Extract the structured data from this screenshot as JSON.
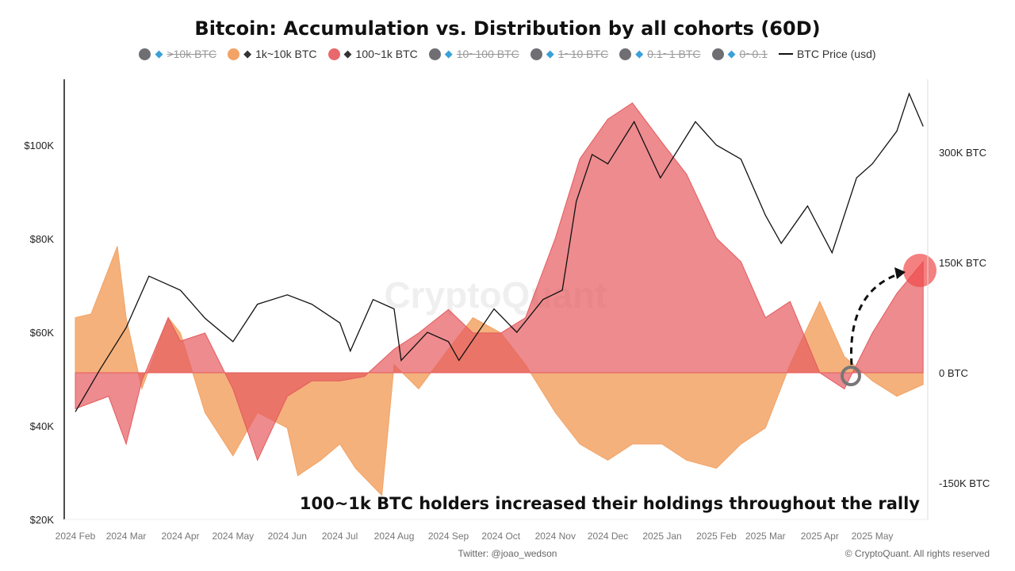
{
  "chart_data": {
    "type": "area",
    "title": "Bitcoin: Accumulation vs. Distribution by all cohorts (60D)",
    "legend": [
      {
        "name": ">10k BTC",
        "color": "#6e6e73",
        "hidden": true,
        "icon": "whale-icon"
      },
      {
        "name": "1k~10k BTC",
        "color": "#f2a365",
        "hidden": false,
        "icon": "shark-icon"
      },
      {
        "name": "100~1k BTC",
        "color": "#e8686c",
        "hidden": false,
        "icon": "dolphin-icon"
      },
      {
        "name": "10~100 BTC",
        "color": "#6e6e73",
        "hidden": true,
        "icon": "fish-icon"
      },
      {
        "name": "1~10 BTC",
        "color": "#6e6e73",
        "hidden": true,
        "icon": "octopus-icon"
      },
      {
        "name": "0.1~1 BTC",
        "color": "#6e6e73",
        "hidden": true,
        "icon": "crab-icon"
      },
      {
        "name": "0~0.1",
        "color": "#6e6e73",
        "hidden": true,
        "icon": "shrimp-icon"
      },
      {
        "name": "BTC Price (usd)",
        "color": "#111111",
        "hidden": false,
        "icon": "line"
      }
    ],
    "left_axis": {
      "ticks": [
        "$20K",
        "$40K",
        "$60K",
        "$80K",
        "$100K"
      ],
      "values": [
        20,
        40,
        60,
        80,
        100
      ],
      "range": [
        20,
        112
      ]
    },
    "right_axis": {
      "ticks": [
        "-150K BTC",
        "0 BTC",
        "150K BTC",
        "300K BTC"
      ],
      "values": [
        -150,
        0,
        150,
        300
      ],
      "range": [
        -200,
        390
      ]
    },
    "x_ticks": [
      "2024 Feb",
      "2024 Mar",
      "2024 Apr",
      "2024 May",
      "2024 Jun",
      "2024 Jul",
      "2024 Aug",
      "2024 Sep",
      "2024 Oct",
      "2024 Nov",
      "2024 Dec",
      "2025 Jan",
      "2025 Feb",
      "2025 Mar",
      "2025 Apr",
      "2025 May"
    ],
    "series": [
      {
        "name": "1k~10k BTC",
        "color": "#f2a365",
        "x": [
          "2024-02-01",
          "2024-02-10",
          "2024-02-25",
          "2024-03-01",
          "2024-03-10",
          "2024-03-25",
          "2024-04-01",
          "2024-04-15",
          "2024-05-01",
          "2024-05-15",
          "2024-06-01",
          "2024-06-07",
          "2024-06-20",
          "2024-07-01",
          "2024-07-10",
          "2024-07-25",
          "2024-08-01",
          "2024-08-15",
          "2024-09-01",
          "2024-09-15",
          "2024-10-01",
          "2024-10-15",
          "2024-11-01",
          "2024-11-15",
          "2024-12-01",
          "2024-12-15",
          "2025-01-01",
          "2025-01-15",
          "2025-02-01",
          "2025-02-15",
          "2025-03-01",
          "2025-03-15",
          "2025-04-01",
          "2025-04-15",
          "2025-05-01",
          "2025-05-15",
          "2025-05-30"
        ],
        "values": [
          75,
          80,
          172,
          75,
          -22,
          75,
          54,
          -54,
          -113,
          -54,
          -75,
          -140,
          -119,
          -97,
          -130,
          -167,
          11,
          -22,
          32,
          75,
          54,
          11,
          -54,
          -97,
          -119,
          -97,
          -97,
          -119,
          -130,
          -97,
          -75,
          11,
          97,
          22,
          -11,
          -32,
          -16
        ]
      },
      {
        "name": "100~1k BTC",
        "color": "#e8686c",
        "x": [
          "2024-02-01",
          "2024-02-20",
          "2024-03-01",
          "2024-03-10",
          "2024-03-25",
          "2024-04-01",
          "2024-04-15",
          "2024-05-01",
          "2024-05-15",
          "2024-06-01",
          "2024-06-15",
          "2024-07-01",
          "2024-07-15",
          "2024-08-01",
          "2024-08-15",
          "2024-09-01",
          "2024-09-15",
          "2024-10-01",
          "2024-10-15",
          "2024-11-01",
          "2024-11-15",
          "2024-12-01",
          "2024-12-15",
          "2025-01-01",
          "2025-01-15",
          "2025-02-01",
          "2025-02-15",
          "2025-03-01",
          "2025-03-15",
          "2025-04-01",
          "2025-04-15",
          "2025-05-01",
          "2025-05-15",
          "2025-05-30"
        ],
        "values": [
          -49,
          -32,
          -97,
          -11,
          75,
          43,
          54,
          -22,
          -119,
          -32,
          -11,
          -11,
          -5,
          32,
          54,
          86,
          54,
          54,
          75,
          183,
          291,
          345,
          367,
          313,
          270,
          183,
          151,
          75,
          97,
          0,
          -22,
          54,
          108,
          151
        ]
      },
      {
        "name": "BTC Price (usd)",
        "color": "#111111",
        "x": [
          "2024-02-01",
          "2024-02-15",
          "2024-03-01",
          "2024-03-14",
          "2024-04-01",
          "2024-04-15",
          "2024-05-01",
          "2024-05-15",
          "2024-06-01",
          "2024-06-15",
          "2024-07-01",
          "2024-07-07",
          "2024-07-20",
          "2024-08-01",
          "2024-08-05",
          "2024-08-20",
          "2024-09-01",
          "2024-09-07",
          "2024-09-27",
          "2024-10-10",
          "2024-10-25",
          "2024-11-05",
          "2024-11-13",
          "2024-11-22",
          "2024-12-01",
          "2024-12-16",
          "2024-12-31",
          "2025-01-20",
          "2025-02-01",
          "2025-02-15",
          "2025-03-01",
          "2025-03-10",
          "2025-03-25",
          "2025-04-08",
          "2025-04-22",
          "2025-05-01",
          "2025-05-15",
          "2025-05-22",
          "2025-05-30"
        ],
        "values": [
          43,
          52,
          61,
          72,
          69,
          63,
          58,
          66,
          68,
          66,
          62,
          56,
          67,
          65,
          54,
          60,
          58,
          54,
          65,
          60,
          67,
          69,
          88,
          98,
          96,
          105,
          93,
          105,
          100,
          97,
          85,
          79,
          87,
          77,
          93,
          96,
          103,
          111,
          104
        ]
      }
    ],
    "annotation": "100~1k BTC holders increased their holdings throughout the rally",
    "watermark": "CryptoQuant",
    "grid": false
  },
  "footer": {
    "twitter": "Twitter: @joao_wedson",
    "copyright": "© CryptoQuant. All rights reserved"
  }
}
